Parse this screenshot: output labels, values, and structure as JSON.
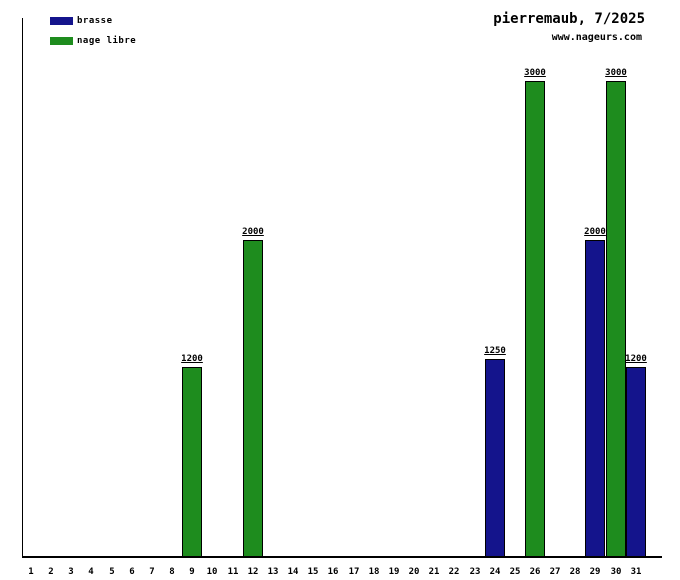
{
  "header": {
    "title": "pierremaub, 7/2025",
    "subtitle": "www.nageurs.com"
  },
  "legend": {
    "position": "top-left",
    "items": [
      {
        "label": "brasse",
        "color": "#14148C"
      },
      {
        "label": "nage libre",
        "color": "#1E8C1E"
      }
    ]
  },
  "chart_data": {
    "type": "bar",
    "title": "pierremaub, 7/2025",
    "subtitle": "www.nageurs.com",
    "xlabel": "",
    "ylabel": "",
    "x_tick_labels": [
      "1",
      "2",
      "3",
      "4",
      "5",
      "6",
      "7",
      "8",
      "9",
      "10",
      "11",
      "12",
      "13",
      "14",
      "15",
      "16",
      "17",
      "18",
      "19",
      "20",
      "21",
      "22",
      "23",
      "24",
      "25",
      "26",
      "27",
      "28",
      "29",
      "30",
      "31"
    ],
    "ylim": [
      0,
      3400
    ],
    "grid": false,
    "legend_position": "top-left",
    "value_labels_underlined": true,
    "series": [
      {
        "name": "brasse",
        "color": "#14148C",
        "points": [
          {
            "x": 24,
            "y": 1250
          },
          {
            "x": 29,
            "y": 2000
          },
          {
            "x": 31,
            "y": 1200
          }
        ]
      },
      {
        "name": "nage libre",
        "color": "#1E8C1E",
        "points": [
          {
            "x": 9,
            "y": 1200
          },
          {
            "x": 12,
            "y": 2000
          },
          {
            "x": 26,
            "y": 3000
          },
          {
            "x": 30,
            "y": 3000
          }
        ]
      }
    ],
    "bars": [
      {
        "day": 9,
        "value": 1200,
        "series": "nage libre"
      },
      {
        "day": 12,
        "value": 2000,
        "series": "nage libre"
      },
      {
        "day": 24,
        "value": 1250,
        "series": "brasse"
      },
      {
        "day": 26,
        "value": 3000,
        "series": "nage libre"
      },
      {
        "day": 29,
        "value": 2000,
        "series": "brasse"
      },
      {
        "day": 30,
        "value": 3000,
        "series": "nage libre"
      },
      {
        "day": 31,
        "value": 1200,
        "series": "brasse"
      }
    ]
  }
}
